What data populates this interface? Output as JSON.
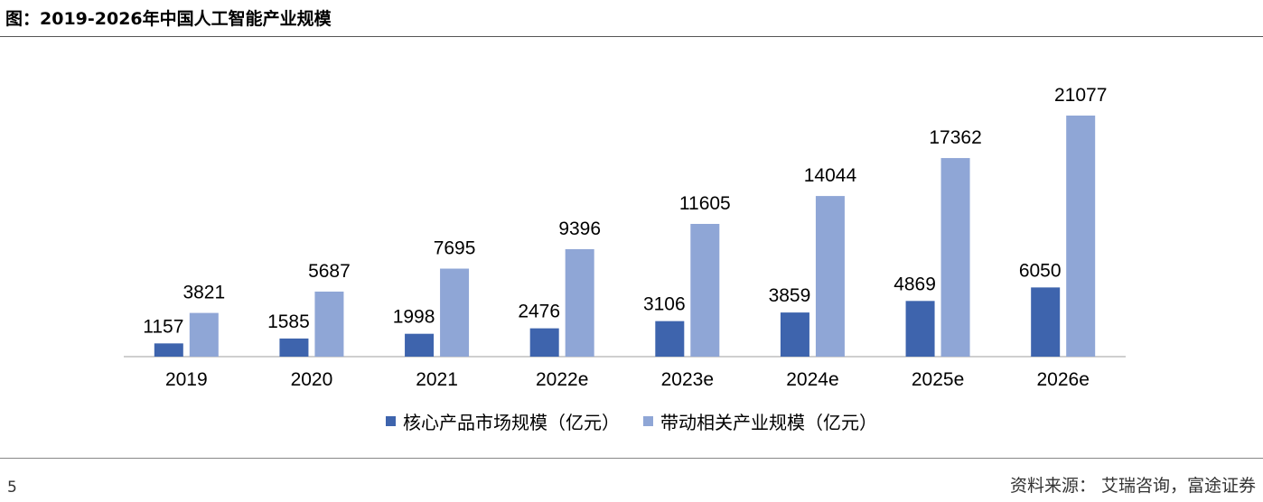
{
  "header": {
    "title": "图：2019-2026年中国人工智能产业规模"
  },
  "footer": {
    "page_number": "5",
    "source": "资料来源： 艾瑞咨询，富途证券"
  },
  "colors": {
    "core": "#3e64ad",
    "related": "#8fa6d6",
    "axis": "#bfbfbf"
  },
  "chart_data": {
    "type": "bar",
    "title": "图：2019-2026年中国人工智能产业规模",
    "categories": [
      "2019",
      "2020",
      "2021",
      "2022e",
      "2023e",
      "2024e",
      "2025e",
      "2026e"
    ],
    "series": [
      {
        "name": "核心产品市场规模（亿元）",
        "values": [
          1157,
          1585,
          1998,
          2476,
          3106,
          3859,
          4869,
          6050
        ]
      },
      {
        "name": "带动相关产业规模（亿元）",
        "values": [
          3821,
          5687,
          7695,
          9396,
          11605,
          14044,
          17362,
          21077
        ]
      }
    ],
    "ylim": [
      0,
      23000
    ],
    "grid": false,
    "legend_position": "bottom"
  }
}
